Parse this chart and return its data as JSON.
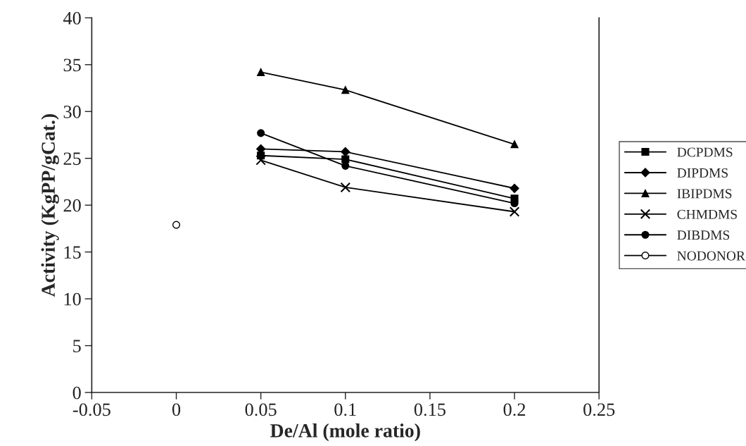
{
  "chart_data": {
    "type": "line",
    "xlabel": "De/Al (mole ratio)",
    "ylabel": "Activity (KgPP/gCat.)",
    "xlim": [
      -0.05,
      0.25
    ],
    "xticks": [
      -0.05,
      0,
      0.05,
      0.1,
      0.15,
      0.2,
      0.25
    ],
    "ylim": [
      0,
      40
    ],
    "yticks": [
      0,
      5,
      10,
      15,
      20,
      25,
      30,
      35,
      40
    ],
    "grid": false,
    "legend": "right",
    "series": [
      {
        "name": "DCPDMS",
        "color": "#000000",
        "marker": "square",
        "x": [
          0.05,
          0.1,
          0.2
        ],
        "values": [
          25.3,
          24.9,
          20.7
        ]
      },
      {
        "name": "DIPDMS",
        "color": "#000000",
        "marker": "diamond",
        "x": [
          0.05,
          0.1,
          0.2
        ],
        "values": [
          26.0,
          25.7,
          21.8
        ]
      },
      {
        "name": "IBIPDMS",
        "color": "#000000",
        "marker": "triangle",
        "x": [
          0.05,
          0.1,
          0.2
        ],
        "values": [
          34.2,
          32.3,
          26.5
        ]
      },
      {
        "name": "CHMDMS",
        "color": "#000000",
        "marker": "cross",
        "x": [
          0.05,
          0.1,
          0.2
        ],
        "values": [
          24.8,
          21.9,
          19.3
        ]
      },
      {
        "name": "DIBDMS",
        "color": "#000000",
        "marker": "circle",
        "x": [
          0.05,
          0.1,
          0.2
        ],
        "values": [
          27.7,
          24.2,
          20.2
        ]
      },
      {
        "name": "NODONOR",
        "color": "#000000",
        "marker": "open circle",
        "x": [
          0
        ],
        "values": [
          17.9
        ]
      }
    ]
  }
}
